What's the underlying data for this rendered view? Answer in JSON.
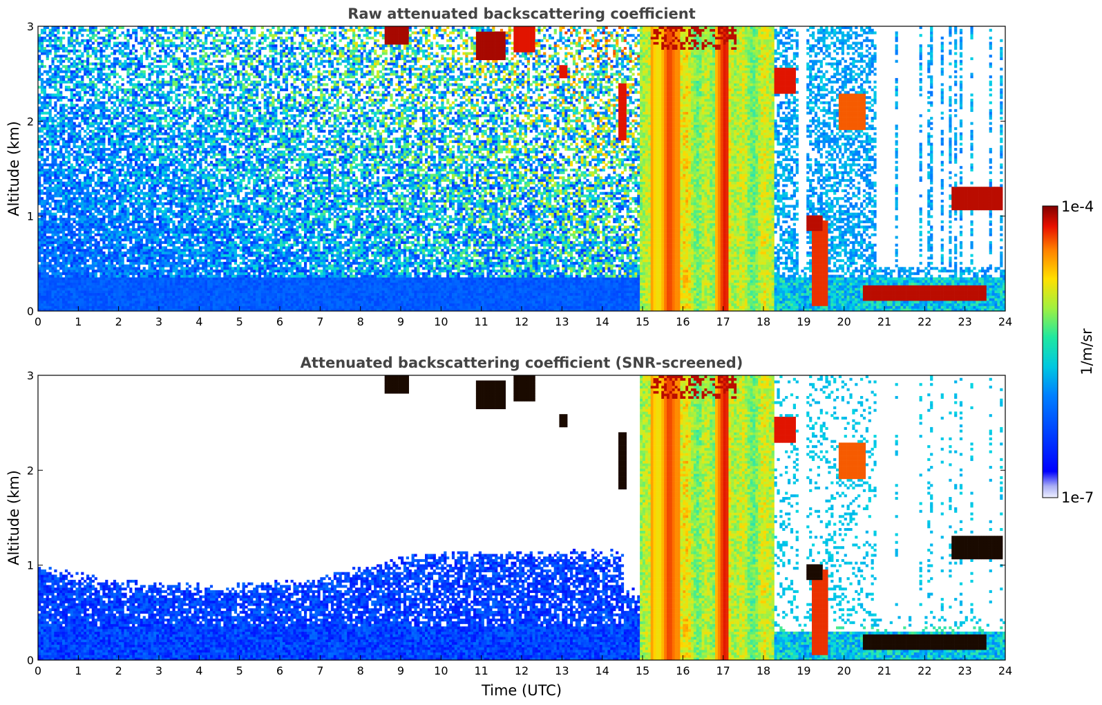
{
  "chart_data": [
    {
      "type": "heatmap",
      "title": "Raw attenuated backscattering coefficient",
      "xlabel": "",
      "ylabel": "Altitude (km)",
      "xlim": [
        0,
        24
      ],
      "ylim": [
        0,
        3
      ],
      "xticks": [
        "0",
        "1",
        "2",
        "3",
        "4",
        "5",
        "6",
        "7",
        "8",
        "9",
        "10",
        "11",
        "12",
        "13",
        "14",
        "15",
        "16",
        "17",
        "18",
        "19",
        "20",
        "21",
        "22",
        "23",
        "24"
      ],
      "yticks": [
        "0",
        "1",
        "2",
        "3"
      ],
      "screened": false
    },
    {
      "type": "heatmap",
      "title": "Attenuated backscattering coefficient (SNR-screened)",
      "xlabel": "Time (UTC)",
      "ylabel": "Altitude (km)",
      "xlim": [
        0,
        24
      ],
      "ylim": [
        0,
        3
      ],
      "xticks": [
        "0",
        "1",
        "2",
        "3",
        "4",
        "5",
        "6",
        "7",
        "8",
        "9",
        "10",
        "11",
        "12",
        "13",
        "14",
        "15",
        "16",
        "17",
        "18",
        "19",
        "20",
        "21",
        "22",
        "23",
        "24"
      ],
      "yticks": [
        "0",
        "1",
        "2",
        "3"
      ],
      "screened": true
    }
  ],
  "colorbar": {
    "label": "1/m/sr",
    "max_label": "1e-4",
    "min_label": "1e-7",
    "vmin": 1e-07,
    "vmax": 0.0001,
    "scale": "log",
    "colormap": "jet"
  }
}
